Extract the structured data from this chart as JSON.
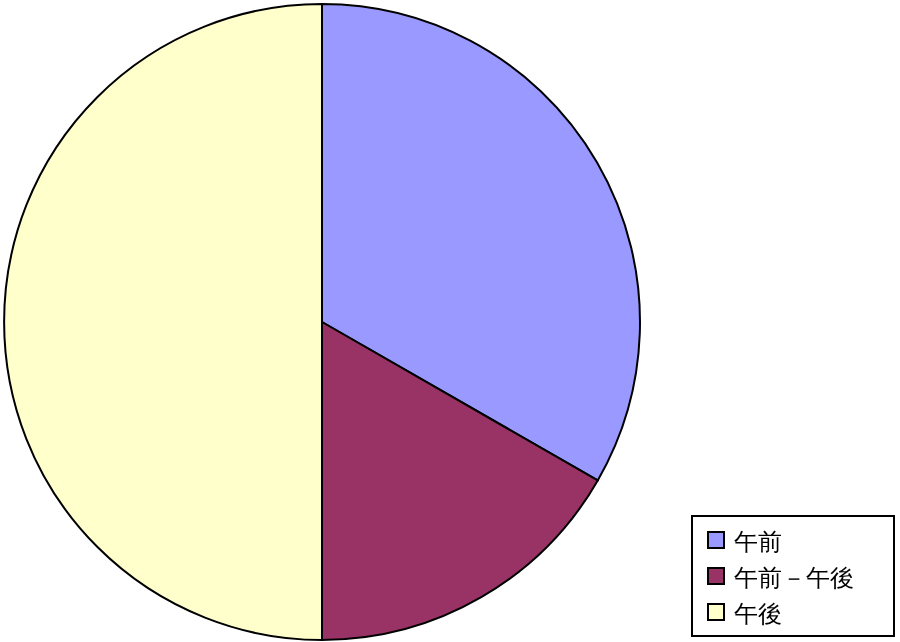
{
  "chart_data": {
    "type": "pie",
    "categories": [
      "午前",
      "午前－午後",
      "午後"
    ],
    "values": [
      33.3,
      16.7,
      50
    ],
    "colors": [
      "#9999ff",
      "#993366",
      "#ffffcc"
    ],
    "legend": "bottom right"
  }
}
